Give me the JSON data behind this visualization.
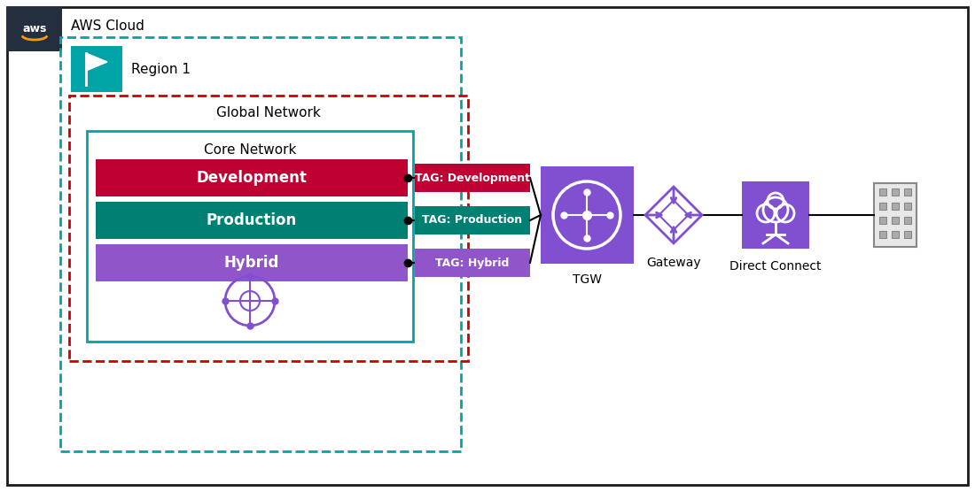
{
  "fig_width": 11.0,
  "fig_height": 5.56,
  "bg_color": "#ffffff",
  "border_color": "#1a1a1a",
  "aws_bg_color": "#232f3e",
  "aws_label": "AWS Cloud",
  "region_label": "Region 1",
  "region_box_color": "#00a4a6",
  "global_network_label": "Global Network",
  "global_network_border": "#cc0000",
  "core_network_label": "Core Network",
  "core_network_border": "#00a4a6",
  "segments": [
    {
      "label": "Development",
      "color": "#bf0032",
      "tag": "TAG: Development",
      "tag_color": "#bf0032"
    },
    {
      "label": "Production",
      "color": "#008073",
      "tag": "TAG: Production",
      "tag_color": "#008073"
    },
    {
      "label": "Hybrid",
      "color": "#9055c8",
      "tag": "TAG: Hybrid",
      "tag_color": "#9055c8"
    }
  ],
  "tgw_label": "TGW",
  "tgw_color": "#8050d0",
  "gateway_label": "Gateway",
  "gateway_color": "#8050d0",
  "direct_connect_label": "Direct Connect",
  "direct_connect_color": "#8050d0",
  "core_network_icon_color": "#8050d0",
  "building_color": "#888888",
  "building_fill": "#e8e8e8"
}
